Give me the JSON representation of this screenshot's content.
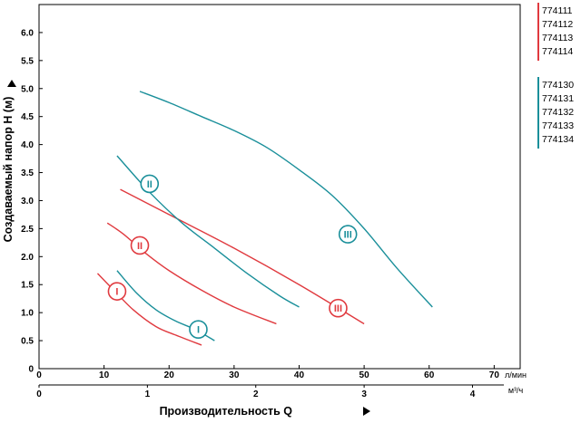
{
  "chart_data": {
    "type": "line",
    "ylabel": "Создаваемый напор H (м)",
    "xlabel": "Производительность Q",
    "x_unit_top": "л/мин",
    "x_unit_bottom": "м³/ч",
    "xlim": [
      0,
      74
    ],
    "ylim": [
      0,
      6.5
    ],
    "x_ticks": [
      0,
      10,
      20,
      30,
      40,
      50,
      60,
      70
    ],
    "x_ticks_m3h": [
      0,
      1,
      2,
      3,
      4
    ],
    "y_ticks": [
      0,
      0.5,
      1.0,
      1.5,
      2.0,
      2.5,
      3.0,
      3.5,
      4.0,
      4.5,
      5.0,
      5.5,
      6.0
    ],
    "y_tick_labels": [
      "0",
      "0.5",
      "1.0",
      "1.5",
      "2.0",
      "2.5",
      "3.0",
      "3.5",
      "4.0",
      "4.5",
      "5.0",
      "5.5",
      "6.0"
    ],
    "grid": false,
    "legend_groups": [
      {
        "color": "#e03a3f",
        "items": [
          "774111",
          "774112",
          "774113",
          "774114"
        ]
      },
      {
        "color": "#1a8f9a",
        "items": [
          "774130",
          "774131",
          "774132",
          "774133",
          "774134"
        ]
      }
    ],
    "series": [
      {
        "label": "I",
        "color": "#e03a3f",
        "x": [
          9.0,
          11.5,
          14.5,
          18.0,
          21.0,
          25.0
        ],
        "y": [
          1.7,
          1.4,
          1.05,
          0.75,
          0.6,
          0.42
        ],
        "marker": [
          12.0,
          1.38
        ]
      },
      {
        "label": "II",
        "color": "#e03a3f",
        "x": [
          10.5,
          13.0,
          16.5,
          20.0,
          25.0,
          30.0,
          36.5
        ],
        "y": [
          2.6,
          2.4,
          2.05,
          1.75,
          1.4,
          1.1,
          0.8
        ],
        "marker": [
          15.5,
          2.2
        ]
      },
      {
        "label": "III",
        "color": "#e03a3f",
        "x": [
          12.5,
          20.0,
          30.0,
          40.0,
          50.0
        ],
        "y": [
          3.2,
          2.75,
          2.15,
          1.5,
          0.8
        ],
        "marker": [
          46.0,
          1.08
        ]
      },
      {
        "label": "I",
        "color": "#1a8f9a",
        "x": [
          12.0,
          15.0,
          18.0,
          21.0,
          24.0,
          27.0
        ],
        "y": [
          1.75,
          1.35,
          1.05,
          0.85,
          0.7,
          0.5
        ],
        "marker": [
          24.5,
          0.7
        ]
      },
      {
        "label": "II",
        "color": "#1a8f9a",
        "x": [
          12.0,
          17.0,
          22.0,
          27.0,
          32.0,
          37.0,
          40.0
        ],
        "y": [
          3.8,
          3.15,
          2.6,
          2.15,
          1.7,
          1.3,
          1.1
        ],
        "marker": [
          17.0,
          3.3
        ]
      },
      {
        "label": "III",
        "color": "#1a8f9a",
        "x": [
          15.5,
          20.0,
          25.0,
          30.0,
          35.0,
          40.0,
          45.0,
          50.0,
          55.0,
          60.5
        ],
        "y": [
          4.95,
          4.75,
          4.5,
          4.25,
          3.95,
          3.55,
          3.1,
          2.5,
          1.8,
          1.1
        ],
        "marker": [
          47.5,
          2.4
        ]
      }
    ]
  }
}
